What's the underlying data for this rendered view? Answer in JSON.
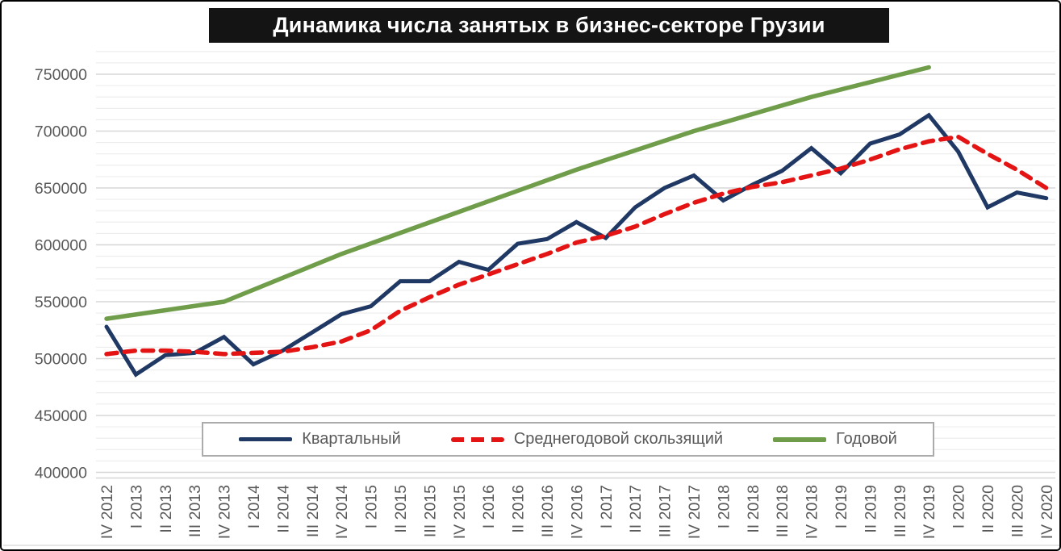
{
  "title": "Динамика числа занятых в бизнес-секторе Грузии",
  "colors": {
    "quarterly": "#1f3864",
    "moving_average": "#e41414",
    "annual": "#6f9d4a",
    "axis_label": "#595959",
    "grid_minor": "#ececec",
    "grid_major": "#d7d7d7",
    "title_bg": "#141414",
    "title_text": "#ffffff",
    "legend_border": "#ababab",
    "legend_text": "#595959"
  },
  "chart_data": {
    "type": "line",
    "title": "Динамика числа занятых в бизнес-секторе Грузии",
    "xlabel": "",
    "ylabel": "",
    "ylim": [
      400000,
      780000
    ],
    "y_ticks": [
      400000,
      450000,
      500000,
      550000,
      600000,
      650000,
      700000,
      750000
    ],
    "grid": {
      "minor_step": 10000,
      "major_step": 50000,
      "grid_top_value": 770000,
      "vertical_grid": false
    },
    "legend_position": "bottom-inside",
    "categories": [
      "IV 2012",
      "I 2013",
      "II 2013",
      "III 2013",
      "IV 2013",
      "I 2014",
      "II 2014",
      "III 2014",
      "IV 2014",
      "I 2015",
      "II 2015",
      "III 2015",
      "IV 2015",
      "I 2016",
      "II 2016",
      "III 2016",
      "IV 2016",
      "I 2017",
      "II 2017",
      "III 2017",
      "IV 2017",
      "I 2018",
      "II 2018",
      "III 2018",
      "IV 2018",
      "I 2019",
      "II 2019",
      "III 2019",
      "IV 2019",
      "I 2020",
      "II 2020",
      "III 2020",
      "IV 2020"
    ],
    "series": [
      {
        "name": "Квартальный",
        "style": "solid",
        "color": "#1f3864",
        "values": [
          528000,
          486000,
          503000,
          505000,
          519000,
          495000,
          507000,
          523000,
          539000,
          546000,
          568000,
          568000,
          585000,
          578000,
          601000,
          605000,
          620000,
          606000,
          633000,
          650000,
          661000,
          639000,
          653000,
          665000,
          685000,
          663000,
          689000,
          697000,
          714000,
          682000,
          633000,
          646000,
          641000
        ]
      },
      {
        "name": "Среднегодовой скользящий",
        "style": "dashed",
        "color": "#e41414",
        "values": [
          504000,
          507000,
          507000,
          506000,
          504000,
          505000,
          506000,
          510000,
          515000,
          525000,
          542000,
          554000,
          565000,
          574000,
          583000,
          592000,
          602000,
          608000,
          616000,
          627000,
          637000,
          645000,
          651000,
          655000,
          661000,
          667000,
          675000,
          684000,
          691000,
          695000,
          680000,
          666000,
          650000
        ]
      },
      {
        "name": "Годовой",
        "style": "solid",
        "color": "#6f9d4a",
        "x_indices": [
          0,
          4,
          8,
          12,
          16,
          20,
          24,
          28
        ],
        "x_labels": [
          "IV 2012",
          "IV 2013",
          "IV 2014",
          "IV 2015",
          "IV 2016",
          "IV 2017",
          "IV 2018",
          "IV 2019"
        ],
        "values": [
          535000,
          550000,
          592000,
          629000,
          666000,
          700000,
          730000,
          756000
        ]
      }
    ]
  },
  "legend": {
    "items": [
      {
        "label": "Квартальный"
      },
      {
        "label": "Среднегодовой скользящий"
      },
      {
        "label": "Годовой"
      }
    ]
  }
}
